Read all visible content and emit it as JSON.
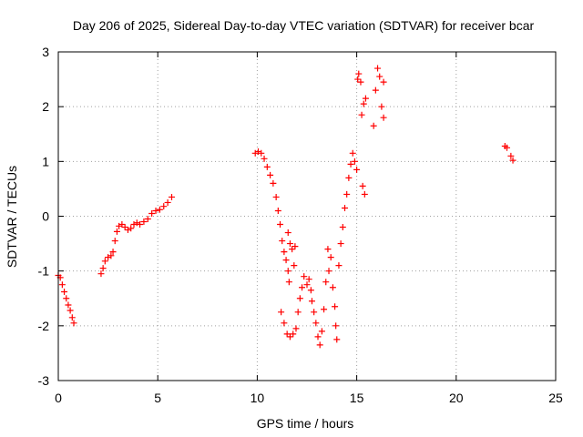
{
  "chart_data": {
    "type": "scatter",
    "title": "Day 206 of 2025, Sidereal Day-to-day VTEC variation (SDTVAR) for receiver bcar",
    "xlabel": "GPS time / hours",
    "ylabel": "SDTVAR / TECUs",
    "xlim": [
      0,
      25
    ],
    "ylim": [
      -3,
      3
    ],
    "xticks": [
      0,
      5,
      10,
      15,
      20,
      25
    ],
    "yticks": [
      -3,
      -2,
      -1,
      0,
      1,
      2,
      3
    ],
    "grid": true,
    "marker": "plus",
    "marker_color": "#ff0000",
    "series": [
      {
        "name": "seg1",
        "points": [
          [
            0.0,
            -1.08
          ],
          [
            0.1,
            -1.12
          ],
          [
            0.2,
            -1.25
          ],
          [
            0.3,
            -1.38
          ],
          [
            0.4,
            -1.5
          ],
          [
            0.5,
            -1.62
          ],
          [
            0.6,
            -1.72
          ],
          [
            0.7,
            -1.85
          ],
          [
            0.78,
            -1.95
          ]
        ]
      },
      {
        "name": "seg2",
        "points": [
          [
            2.15,
            -1.05
          ],
          [
            2.25,
            -0.95
          ],
          [
            2.35,
            -0.82
          ],
          [
            2.5,
            -0.75
          ],
          [
            2.65,
            -0.72
          ],
          [
            2.75,
            -0.65
          ],
          [
            2.85,
            -0.45
          ],
          [
            2.95,
            -0.28
          ],
          [
            3.05,
            -0.18
          ],
          [
            3.2,
            -0.15
          ],
          [
            3.35,
            -0.2
          ],
          [
            3.5,
            -0.25
          ],
          [
            3.65,
            -0.22
          ],
          [
            3.8,
            -0.15
          ],
          [
            3.95,
            -0.12
          ],
          [
            4.1,
            -0.15
          ],
          [
            4.3,
            -0.1
          ],
          [
            4.5,
            -0.05
          ],
          [
            4.7,
            0.05
          ],
          [
            4.9,
            0.1
          ],
          [
            5.1,
            0.12
          ],
          [
            5.3,
            0.18
          ],
          [
            5.5,
            0.25
          ],
          [
            5.7,
            0.35
          ]
        ]
      },
      {
        "name": "seg3",
        "points": [
          [
            9.9,
            1.15
          ],
          [
            10.05,
            1.18
          ],
          [
            10.2,
            1.15
          ],
          [
            10.35,
            1.05
          ],
          [
            10.5,
            0.9
          ],
          [
            10.65,
            0.75
          ],
          [
            10.8,
            0.6
          ],
          [
            10.95,
            0.35
          ],
          [
            11.05,
            0.1
          ],
          [
            11.15,
            -0.15
          ],
          [
            11.25,
            -0.45
          ],
          [
            11.35,
            -0.65
          ],
          [
            11.45,
            -0.8
          ],
          [
            11.55,
            -1.0
          ],
          [
            11.6,
            -1.2
          ],
          [
            11.55,
            -0.3
          ],
          [
            11.65,
            -0.5
          ],
          [
            11.75,
            -0.6
          ],
          [
            11.85,
            -0.9
          ],
          [
            11.9,
            -0.55
          ],
          [
            11.2,
            -1.75
          ],
          [
            11.35,
            -1.95
          ],
          [
            11.5,
            -2.15
          ],
          [
            11.65,
            -2.2
          ],
          [
            11.8,
            -2.15
          ],
          [
            11.95,
            -2.05
          ],
          [
            12.05,
            -1.75
          ],
          [
            12.15,
            -1.5
          ],
          [
            12.25,
            -1.3
          ],
          [
            12.35,
            -1.1
          ],
          [
            12.5,
            -1.25
          ],
          [
            12.6,
            -1.15
          ],
          [
            12.7,
            -1.35
          ],
          [
            12.75,
            -1.55
          ],
          [
            12.85,
            -1.75
          ],
          [
            12.95,
            -1.95
          ],
          [
            13.05,
            -2.2
          ],
          [
            13.15,
            -2.35
          ],
          [
            13.25,
            -2.1
          ],
          [
            13.35,
            -1.7
          ],
          [
            13.45,
            -1.2
          ],
          [
            13.55,
            -0.6
          ],
          [
            13.6,
            -1.0
          ],
          [
            13.7,
            -0.75
          ],
          [
            13.8,
            -1.3
          ],
          [
            13.9,
            -1.65
          ],
          [
            13.95,
            -2.0
          ],
          [
            14.0,
            -2.25
          ],
          [
            14.1,
            -0.9
          ],
          [
            14.2,
            -0.5
          ],
          [
            14.3,
            -0.2
          ],
          [
            14.4,
            0.15
          ],
          [
            14.5,
            0.4
          ],
          [
            14.6,
            0.7
          ],
          [
            14.7,
            0.95
          ],
          [
            14.8,
            1.15
          ],
          [
            14.9,
            1.0
          ],
          [
            15.0,
            0.85
          ],
          [
            15.05,
            2.5
          ],
          [
            15.1,
            2.6
          ],
          [
            15.2,
            2.45
          ],
          [
            15.3,
            0.55
          ],
          [
            15.4,
            0.4
          ],
          [
            15.25,
            1.85
          ],
          [
            15.35,
            2.05
          ],
          [
            15.45,
            2.15
          ],
          [
            15.85,
            1.65
          ],
          [
            15.95,
            2.3
          ],
          [
            16.05,
            2.7
          ],
          [
            16.15,
            2.55
          ],
          [
            16.25,
            2.0
          ],
          [
            16.35,
            1.8
          ],
          [
            16.35,
            2.45
          ]
        ]
      },
      {
        "name": "seg4",
        "points": [
          [
            22.45,
            1.28
          ],
          [
            22.55,
            1.25
          ],
          [
            22.75,
            1.1
          ],
          [
            22.85,
            1.02
          ]
        ]
      }
    ]
  }
}
